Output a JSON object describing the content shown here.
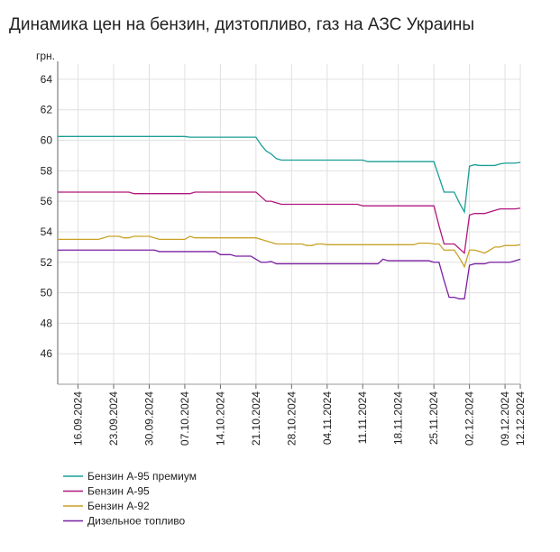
{
  "chart_data": {
    "type": "line",
    "title": "Динамика цен на бензин, дизтопливо, газ на АЗС Украины",
    "y_label": "грн.",
    "categories": [
      null,
      null,
      null,
      null,
      "16.09.2024",
      null,
      null,
      null,
      null,
      null,
      null,
      "23.09.2024",
      null,
      null,
      null,
      null,
      null,
      null,
      "30.09.2024",
      null,
      null,
      null,
      null,
      null,
      null,
      "07.10.2024",
      null,
      null,
      null,
      null,
      null,
      null,
      "14.10.2024",
      null,
      null,
      null,
      null,
      null,
      null,
      "21.10.2024",
      null,
      null,
      null,
      null,
      null,
      null,
      "28.10.2024",
      null,
      null,
      null,
      null,
      null,
      null,
      "04.11.2024",
      null,
      null,
      null,
      null,
      null,
      null,
      "11.11.2024",
      null,
      null,
      null,
      null,
      null,
      null,
      "18.11.2024",
      null,
      null,
      null,
      null,
      null,
      null,
      "25.11.2024",
      null,
      null,
      null,
      null,
      null,
      null,
      "02.12.2024",
      null,
      null,
      null,
      null,
      null,
      null,
      "09.12.2024",
      null,
      null,
      "12.12.2024"
    ],
    "series": [
      {
        "name": "Бензин А-95 премиум",
        "color": "#1a9e96",
        "values": [
          60.25,
          60.25,
          60.25,
          60.25,
          60.25,
          60.25,
          60.25,
          60.25,
          60.25,
          60.25,
          60.25,
          60.25,
          60.25,
          60.25,
          60.25,
          60.25,
          60.25,
          60.25,
          60.25,
          60.25,
          60.25,
          60.25,
          60.25,
          60.25,
          60.25,
          60.25,
          60.2,
          60.2,
          60.2,
          60.2,
          60.2,
          60.2,
          60.2,
          60.2,
          60.2,
          60.2,
          60.2,
          60.2,
          60.2,
          60.2,
          59.7,
          59.3,
          59.1,
          58.8,
          58.7,
          58.7,
          58.7,
          58.7,
          58.7,
          58.7,
          58.7,
          58.7,
          58.7,
          58.7,
          58.7,
          58.7,
          58.7,
          58.7,
          58.7,
          58.7,
          58.7,
          58.6,
          58.6,
          58.6,
          58.6,
          58.6,
          58.6,
          58.6,
          58.6,
          58.6,
          58.6,
          58.6,
          58.6,
          58.6,
          58.6,
          57.6,
          56.6,
          56.6,
          56.6,
          55.9,
          55.3,
          58.3,
          58.4,
          58.35,
          58.35,
          58.35,
          58.35,
          58.45,
          58.5,
          58.5,
          58.5,
          58.55
        ]
      },
      {
        "name": "Бензин А-95",
        "color": "#b0177e",
        "values": [
          56.6,
          56.6,
          56.6,
          56.6,
          56.6,
          56.6,
          56.6,
          56.6,
          56.6,
          56.6,
          56.6,
          56.6,
          56.6,
          56.6,
          56.6,
          56.5,
          56.5,
          56.5,
          56.5,
          56.5,
          56.5,
          56.5,
          56.5,
          56.5,
          56.5,
          56.5,
          56.5,
          56.6,
          56.6,
          56.6,
          56.6,
          56.6,
          56.6,
          56.6,
          56.6,
          56.6,
          56.6,
          56.6,
          56.6,
          56.6,
          56.3,
          56.0,
          56.0,
          55.9,
          55.8,
          55.8,
          55.8,
          55.8,
          55.8,
          55.8,
          55.8,
          55.8,
          55.8,
          55.8,
          55.8,
          55.8,
          55.8,
          55.8,
          55.8,
          55.8,
          55.7,
          55.7,
          55.7,
          55.7,
          55.7,
          55.7,
          55.7,
          55.7,
          55.7,
          55.7,
          55.7,
          55.7,
          55.7,
          55.7,
          55.7,
          54.4,
          53.2,
          53.2,
          53.2,
          52.9,
          52.6,
          55.1,
          55.2,
          55.2,
          55.2,
          55.3,
          55.4,
          55.5,
          55.5,
          55.5,
          55.5,
          55.55
        ]
      },
      {
        "name": "Бензин А-92",
        "color": "#c9a227",
        "values": [
          53.5,
          53.5,
          53.5,
          53.5,
          53.5,
          53.5,
          53.5,
          53.5,
          53.5,
          53.6,
          53.7,
          53.7,
          53.7,
          53.6,
          53.6,
          53.7,
          53.7,
          53.7,
          53.7,
          53.6,
          53.5,
          53.5,
          53.5,
          53.5,
          53.5,
          53.5,
          53.7,
          53.6,
          53.6,
          53.6,
          53.6,
          53.6,
          53.6,
          53.6,
          53.6,
          53.6,
          53.6,
          53.6,
          53.6,
          53.6,
          53.5,
          53.4,
          53.3,
          53.2,
          53.2,
          53.2,
          53.2,
          53.2,
          53.2,
          53.1,
          53.1,
          53.2,
          53.2,
          53.15,
          53.15,
          53.15,
          53.15,
          53.15,
          53.15,
          53.15,
          53.15,
          53.15,
          53.15,
          53.15,
          53.15,
          53.15,
          53.15,
          53.15,
          53.15,
          53.15,
          53.15,
          53.25,
          53.25,
          53.25,
          53.2,
          53.2,
          52.8,
          52.8,
          52.8,
          52.3,
          51.7,
          52.8,
          52.8,
          52.7,
          52.6,
          52.8,
          53.0,
          53.0,
          53.1,
          53.1,
          53.1,
          53.15
        ]
      },
      {
        "name": "Дизельное топливо",
        "color": "#7b1fa2",
        "values": [
          52.8,
          52.8,
          52.8,
          52.8,
          52.8,
          52.8,
          52.8,
          52.8,
          52.8,
          52.8,
          52.8,
          52.8,
          52.8,
          52.8,
          52.8,
          52.8,
          52.8,
          52.8,
          52.8,
          52.8,
          52.7,
          52.7,
          52.7,
          52.7,
          52.7,
          52.7,
          52.7,
          52.7,
          52.7,
          52.7,
          52.7,
          52.7,
          52.5,
          52.5,
          52.5,
          52.4,
          52.4,
          52.4,
          52.4,
          52.2,
          52.0,
          52.0,
          52.05,
          51.9,
          51.9,
          51.9,
          51.9,
          51.9,
          51.9,
          51.9,
          51.9,
          51.9,
          51.9,
          51.9,
          51.9,
          51.9,
          51.9,
          51.9,
          51.9,
          51.9,
          51.9,
          51.9,
          51.9,
          51.9,
          52.2,
          52.1,
          52.1,
          52.1,
          52.1,
          52.1,
          52.1,
          52.1,
          52.1,
          52.1,
          52.0,
          52.0,
          50.8,
          49.7,
          49.7,
          49.6,
          49.6,
          51.8,
          51.9,
          51.9,
          51.9,
          52.0,
          52.0,
          52.0,
          52.0,
          52.0,
          52.1,
          52.2
        ]
      }
    ],
    "ylim": [
      44,
      65
    ],
    "yticks": [
      46,
      48,
      50,
      52,
      54,
      56,
      58,
      60,
      62,
      64
    ],
    "grid": true
  }
}
